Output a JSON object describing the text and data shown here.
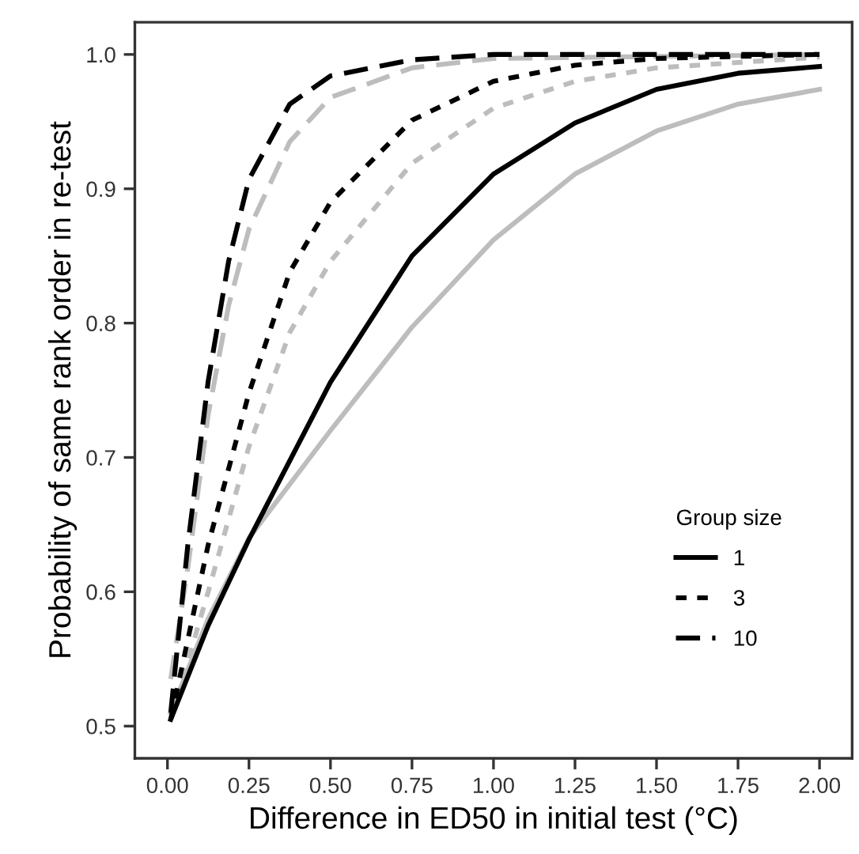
{
  "chart_data": {
    "type": "line",
    "xlabel": "Difference in ED50 in initial test (°C)",
    "ylabel": "Probability of same rank order in re-test",
    "legend_title": "Group size",
    "legend": "bottom right",
    "grid": false,
    "marker": "none",
    "xlim": [
      -0.1,
      2.1
    ],
    "ylim": [
      0.476,
      1.024
    ],
    "xticks": [
      {
        "value": 0,
        "label": "0.00"
      },
      {
        "value": 0.25,
        "label": "0.25"
      },
      {
        "value": 0.5,
        "label": "0.50"
      },
      {
        "value": 0.75,
        "label": "0.75"
      },
      {
        "value": 1,
        "label": "1.00"
      },
      {
        "value": 1.25,
        "label": "1.25"
      },
      {
        "value": 1.5,
        "label": "1.50"
      },
      {
        "value": 1.75,
        "label": "1.75"
      },
      {
        "value": 2,
        "label": "2.00"
      }
    ],
    "yticks": [
      0.5,
      0.6,
      0.7,
      0.8,
      0.9,
      {
        "value": 1,
        "label": "1.0"
      }
    ],
    "series": [
      {
        "color": "#bdbdbd",
        "line_style": "solid",
        "x": [
          0.01,
          0.125,
          0.25,
          0.5,
          0.75,
          1.0,
          1.25,
          1.5,
          1.75,
          2.0
        ],
        "values": [
          0.51,
          0.58,
          0.64,
          0.72,
          0.797,
          0.862,
          0.911,
          0.943,
          0.963,
          0.974
        ]
      },
      {
        "color": "#bdbdbd",
        "line_style": "dotted",
        "x": [
          0.01,
          0.125,
          0.25,
          0.375,
          0.5,
          0.75,
          1.0,
          1.25,
          1.5,
          2.0
        ],
        "values": [
          0.505,
          0.6,
          0.708,
          0.793,
          0.846,
          0.919,
          0.96,
          0.98,
          0.99,
          0.998
        ]
      },
      {
        "color": "#bdbdbd",
        "line_style": "dashed",
        "x": [
          0.01,
          0.0625,
          0.125,
          0.1875,
          0.25,
          0.375,
          0.5,
          0.75,
          1.0,
          2.0
        ],
        "values": [
          0.535,
          0.618,
          0.732,
          0.813,
          0.87,
          0.935,
          0.968,
          0.99,
          0.997,
          1.0
        ]
      },
      {
        "name": "1",
        "color": "#000000",
        "line_style": "solid",
        "x": [
          0.01,
          0.125,
          0.25,
          0.5,
          0.75,
          1.0,
          1.25,
          1.5,
          1.75,
          2.0
        ],
        "values": [
          0.505,
          0.575,
          0.639,
          0.756,
          0.85,
          0.911,
          0.949,
          0.974,
          0.986,
          0.991
        ]
      },
      {
        "name": "3",
        "color": "#000000",
        "line_style": "dotted",
        "x": [
          0.01,
          0.125,
          0.25,
          0.375,
          0.5,
          0.75,
          1.0,
          1.25,
          1.5,
          2.0
        ],
        "values": [
          0.505,
          0.635,
          0.748,
          0.838,
          0.89,
          0.951,
          0.98,
          0.992,
          0.997,
          1.0
        ]
      },
      {
        "name": "10",
        "color": "#000000",
        "line_style": "dashed",
        "x": [
          0.01,
          0.0625,
          0.125,
          0.1875,
          0.25,
          0.375,
          0.5,
          0.75,
          1.0,
          2.0
        ],
        "values": [
          0.51,
          0.635,
          0.757,
          0.846,
          0.907,
          0.963,
          0.984,
          0.996,
          1.0,
          1.0
        ]
      }
    ]
  }
}
